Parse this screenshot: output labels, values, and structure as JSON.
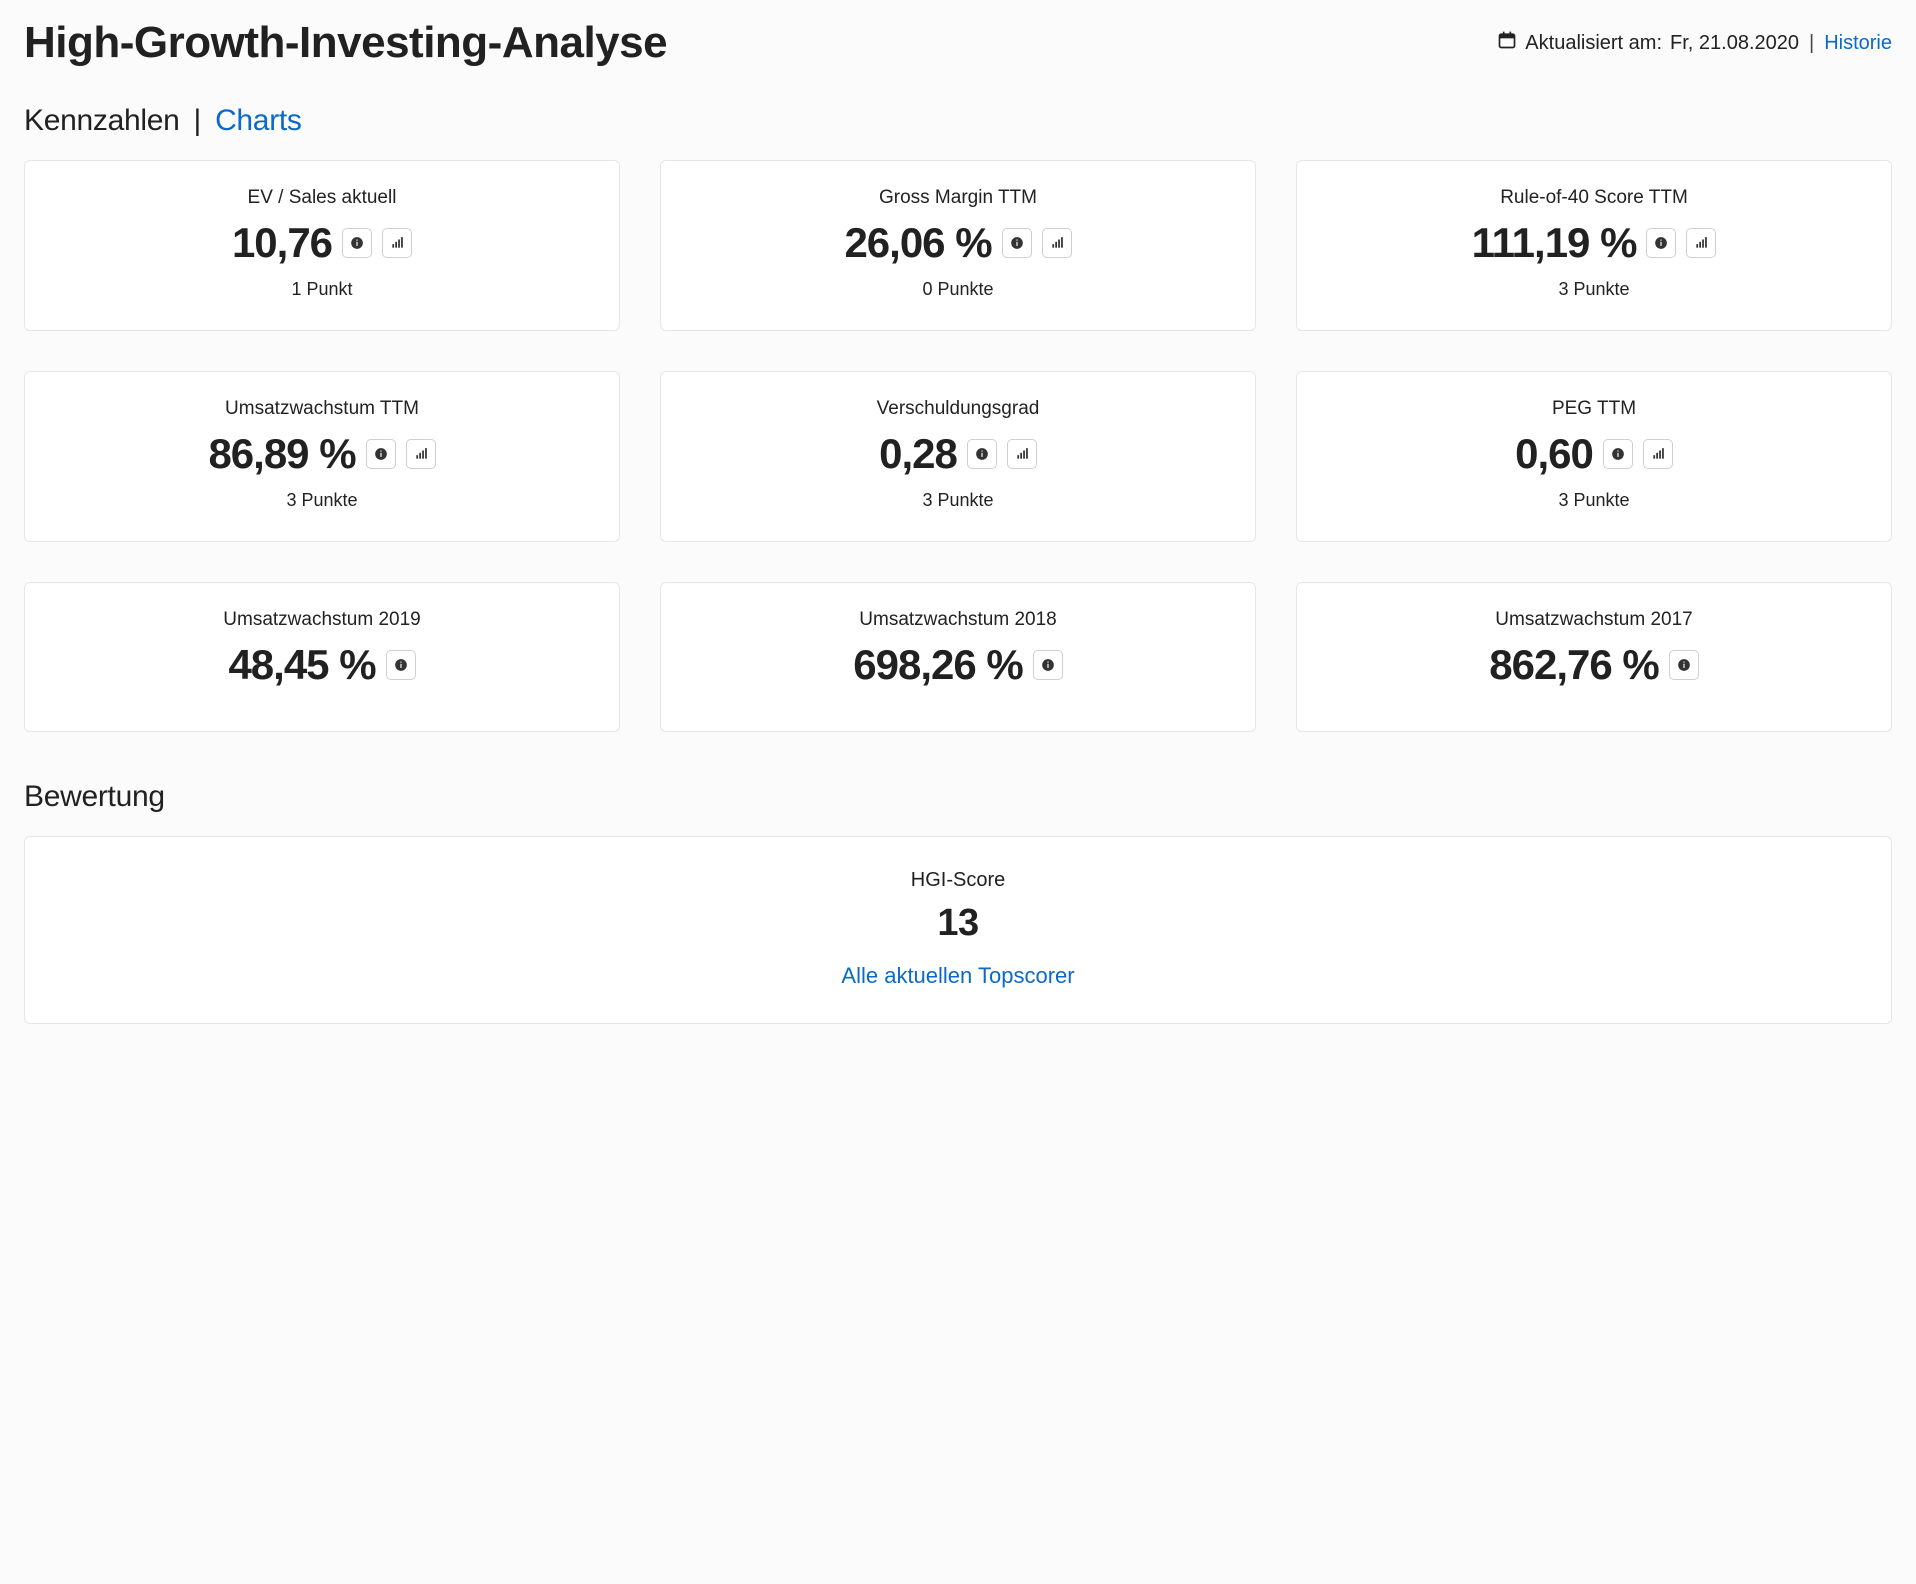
{
  "header": {
    "title": "High-Growth-Investing-Analyse",
    "updated_label": "Aktualisiert am:",
    "updated_date": "Fr, 21.08.2020",
    "historie_label": "Historie"
  },
  "tabs": {
    "active_label": "Kennzahlen",
    "separator": "|",
    "link_label": "Charts"
  },
  "style": {
    "card_bg": "#ffffff",
    "card_border": "#e6e6e6",
    "body_bg": "#fbfbfb",
    "link_color": "#0b69c7",
    "text_color": "#212121",
    "icon_btn_border": "#cfcfcf"
  },
  "metrics": [
    {
      "title": "EV / Sales aktuell",
      "value": "10,76",
      "sub": "1 Punkt",
      "show_info": true,
      "show_chart": true
    },
    {
      "title": "Gross Margin TTM",
      "value": "26,06 %",
      "sub": "0 Punkte",
      "show_info": true,
      "show_chart": true
    },
    {
      "title": "Rule-of-40 Score TTM",
      "value": "111,19 %",
      "sub": "3 Punkte",
      "show_info": true,
      "show_chart": true
    },
    {
      "title": "Umsatzwachstum TTM",
      "value": "86,89 %",
      "sub": "3 Punkte",
      "show_info": true,
      "show_chart": true
    },
    {
      "title": "Verschuldungsgrad",
      "value": "0,28",
      "sub": "3 Punkte",
      "show_info": true,
      "show_chart": true
    },
    {
      "title": "PEG TTM",
      "value": "0,60",
      "sub": "3 Punkte",
      "show_info": true,
      "show_chart": true
    },
    {
      "title": "Umsatzwachstum 2019",
      "value": "48,45 %",
      "sub": "",
      "show_info": true,
      "show_chart": false
    },
    {
      "title": "Umsatzwachstum 2018",
      "value": "698,26 %",
      "sub": "",
      "show_info": true,
      "show_chart": false
    },
    {
      "title": "Umsatzwachstum 2017",
      "value": "862,76 %",
      "sub": "",
      "show_info": true,
      "show_chart": false
    }
  ],
  "rating": {
    "heading": "Bewertung",
    "score_label": "HGI-Score",
    "score_value": "13",
    "link_label": "Alle aktuellen Topscorer"
  }
}
